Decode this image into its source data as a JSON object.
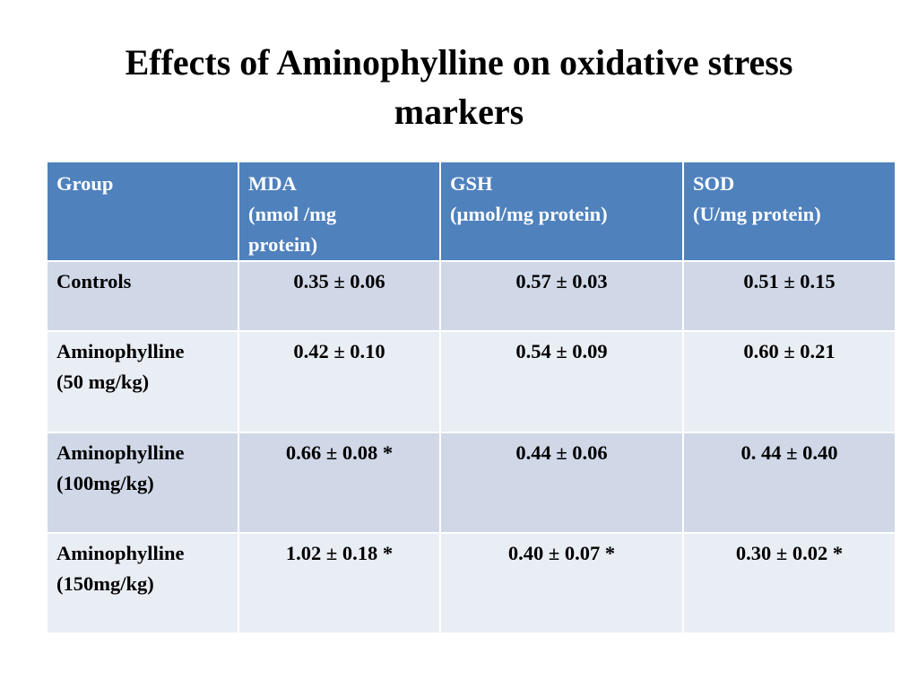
{
  "slide": {
    "title_line1": "Effects of Aminophylline on oxidative stress",
    "title_line2": "markers"
  },
  "table": {
    "headers": [
      {
        "lines": [
          "Group"
        ]
      },
      {
        "lines": [
          "MDA",
          "(nmol /mg",
          "protein)"
        ]
      },
      {
        "lines": [
          "GSH",
          "(µmol/mg protein)"
        ]
      },
      {
        "lines": [
          "SOD",
          "(U/mg protein)"
        ]
      }
    ],
    "rows": [
      {
        "group": [
          "Controls"
        ],
        "mda": "0.35 ± 0.06",
        "gsh": "0.57 ± 0.03",
        "sod": "0.51 ± 0.15"
      },
      {
        "group": [
          "Aminophylline",
          "(50 mg/kg)"
        ],
        "mda": "0.42 ± 0.10",
        "gsh": "0.54 ± 0.09",
        "sod": "0.60 ± 0.21"
      },
      {
        "group": [
          "Aminophylline",
          "(100mg/kg)"
        ],
        "mda": "0.66 ± 0.08 *",
        "gsh": "0.44 ± 0.06",
        "sod": "0. 44 ± 0.40"
      },
      {
        "group": [
          "Aminophylline",
          "(150mg/kg)"
        ],
        "mda": "1.02 ± 0.18 *",
        "gsh": "0.40 ± 0.07 *",
        "sod": "0.30 ± 0.02 *"
      }
    ]
  },
  "colors": {
    "header_background": "#4f81bd",
    "row_band_dark": "#d0d8e8",
    "row_band_light": "#e9edf4"
  }
}
